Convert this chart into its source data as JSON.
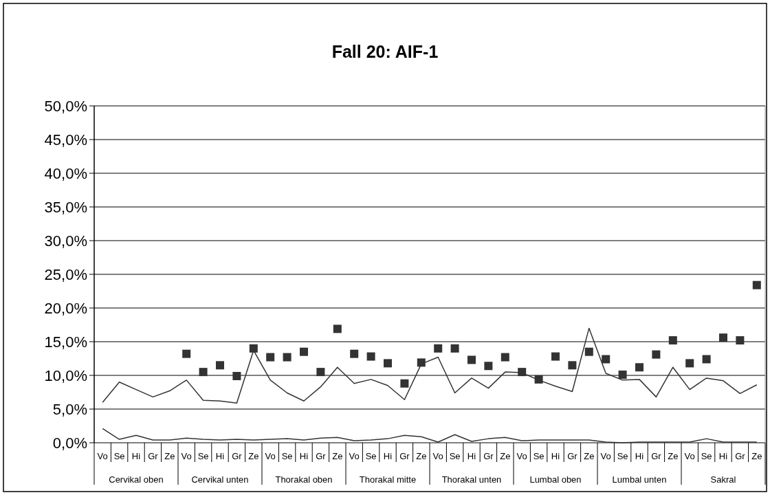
{
  "chart_data": {
    "type": "line",
    "title": "Fall 20: AIF-1",
    "categories": [
      "Vo",
      "Se",
      "Hi",
      "Gr",
      "Ze",
      "Vo",
      "Se",
      "Hi",
      "Gr",
      "Ze",
      "Vo",
      "Se",
      "Hi",
      "Gr",
      "Ze",
      "Vo",
      "Se",
      "Hi",
      "Gr",
      "Ze",
      "Vo",
      "Se",
      "Hi",
      "Gr",
      "Ze",
      "Vo",
      "Se",
      "Hi",
      "Gr",
      "Ze",
      "Vo",
      "Se",
      "Hi",
      "Gr",
      "Ze",
      "Vo",
      "Se",
      "Hi",
      "Gr",
      "Ze"
    ],
    "annotations": [
      "Cervikal oben",
      "Cervikal unten",
      "Thorakal oben",
      "Thorakal mitte",
      "Thorakal unten",
      "Lumbal oben",
      "Lumbal unten",
      "Sakral"
    ],
    "series": [
      {
        "color": "#333333",
        "values": [
          6.0,
          9.0,
          7.9,
          6.8,
          7.7,
          9.3,
          6.3,
          6.2,
          5.9,
          13.7,
          9.3,
          7.4,
          6.2,
          8.3,
          11.2,
          8.8,
          9.4,
          8.5,
          6.4,
          11.7,
          12.7,
          7.4,
          9.6,
          8.1,
          10.5,
          10.4,
          9.3,
          8.4,
          7.6,
          17.0,
          10.3,
          9.3,
          9.4,
          6.8,
          11.2,
          7.9,
          9.6,
          9.2,
          7.3,
          8.6
        ]
      },
      {
        "color": "#333333",
        "values": [
          2.1,
          0.5,
          1.1,
          0.4,
          0.4,
          0.7,
          0.5,
          0.4,
          0.5,
          0.4,
          0.5,
          0.6,
          0.4,
          0.7,
          0.8,
          0.3,
          0.4,
          0.6,
          1.1,
          0.9,
          0.1,
          1.2,
          0.2,
          0.6,
          0.8,
          0.3,
          0.4,
          0.4,
          0.4,
          0.4,
          0.1,
          0.0,
          0.1,
          0.1,
          0.1,
          0.1,
          0.6,
          0.1,
          0.1,
          0.1
        ]
      },
      {
        "type": "scatter",
        "marker": "square",
        "color": "#333333",
        "values": [
          null,
          null,
          null,
          null,
          null,
          13.2,
          10.5,
          11.5,
          9.9,
          14.0,
          12.7,
          12.7,
          13.5,
          10.5,
          16.9,
          13.2,
          12.8,
          11.8,
          8.8,
          11.9,
          14.0,
          14.0,
          12.3,
          11.4,
          12.7,
          10.5,
          9.4,
          12.8,
          11.5,
          13.5,
          12.4,
          10.1,
          11.2,
          13.1,
          15.2,
          11.8,
          12.4,
          15.6,
          15.2,
          23.4
        ]
      }
    ],
    "ylim": [
      0,
      50
    ],
    "yticks": [
      {
        "value": 0,
        "label": "0,0%"
      },
      {
        "value": 5,
        "label": "5,0%"
      },
      {
        "value": 10,
        "label": "10,0%"
      },
      {
        "value": 15,
        "label": "15,0%"
      },
      {
        "value": 20,
        "label": "20,0%"
      },
      {
        "value": 25,
        "label": "25,0%"
      },
      {
        "value": 30,
        "label": "30,0%"
      },
      {
        "value": 35,
        "label": "35,0%"
      },
      {
        "value": 40,
        "label": "40,0%"
      },
      {
        "value": 45,
        "label": "45,0%"
      },
      {
        "value": 50,
        "label": "50,0%"
      }
    ],
    "grid": "y"
  }
}
